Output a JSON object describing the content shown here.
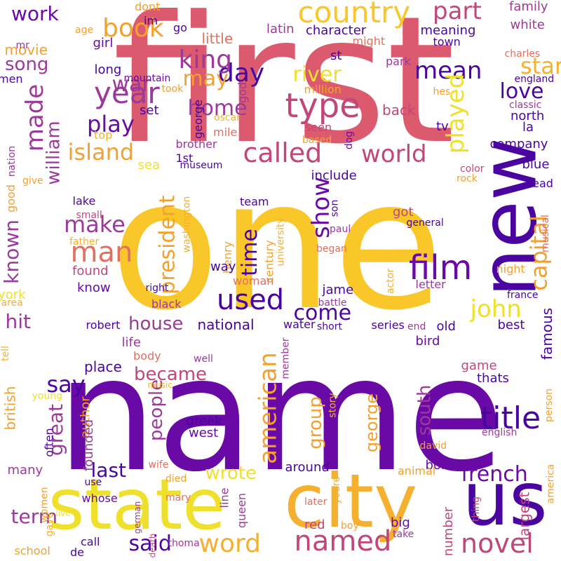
{
  "colors": {
    "background": "#ffffff",
    "palette": [
      "#dc5a6e",
      "#f9c72a",
      "#6a0aa6",
      "#f4a02e",
      "#4a04a0",
      "#c1477a",
      "#e07060",
      "#f0e02e",
      "#f4b04a",
      "#9b3a9b"
    ]
  },
  "words": [
    {
      "text": "first",
      "color": "#dc5a6e"
    },
    {
      "text": "one",
      "color": "#f9c72a"
    },
    {
      "text": "name",
      "color": "#6a0aa6"
    },
    {
      "text": "state",
      "color": "#f0e02e"
    },
    {
      "text": "city",
      "color": "#f4b02e"
    },
    {
      "text": "us",
      "color": "#4a04a0"
    },
    {
      "text": "new",
      "color": "#4a04a0"
    },
    {
      "text": "country",
      "color": "#f9c72a"
    },
    {
      "text": "year",
      "color": "#9b3a9b"
    },
    {
      "text": "called",
      "color": "#c1477a"
    },
    {
      "text": "type",
      "color": "#c1477a"
    },
    {
      "text": "man",
      "color": "#e07060"
    },
    {
      "text": "film",
      "color": "#6a0aa6"
    },
    {
      "text": "named",
      "color": "#c1477a"
    },
    {
      "text": "title",
      "color": "#4a04a0"
    },
    {
      "text": "word",
      "color": "#f4b02e"
    },
    {
      "text": "used",
      "color": "#4a04a0"
    },
    {
      "text": "novel",
      "color": "#c1477a"
    },
    {
      "text": "day",
      "color": "#4a04a0"
    },
    {
      "text": "part",
      "color": "#c1477a"
    },
    {
      "text": "book",
      "color": "#f4a02e"
    },
    {
      "text": "king",
      "color": "#9b3a9b"
    },
    {
      "text": "war",
      "color": "#9b3a9b"
    },
    {
      "text": "may",
      "color": "#f4a02e"
    },
    {
      "text": "river",
      "color": "#f0e02e"
    },
    {
      "text": "mean",
      "color": "#4a04a0"
    },
    {
      "text": "star",
      "color": "#f4b02e"
    },
    {
      "text": "love",
      "color": "#4a04a0"
    },
    {
      "text": "home",
      "color": "#9b3a9b"
    },
    {
      "text": "made",
      "color": "#9b3a9b"
    },
    {
      "text": "play",
      "color": "#6a0aa6"
    },
    {
      "text": "played",
      "color": "#f0e02e"
    },
    {
      "text": "world",
      "color": "#c1477a"
    },
    {
      "text": "island",
      "color": "#f4a02e"
    },
    {
      "text": "william",
      "color": "#9b3a9b"
    },
    {
      "text": "song",
      "color": "#9b3a9b"
    },
    {
      "text": "work",
      "color": "#6a0aa6"
    },
    {
      "text": "show",
      "color": "#6a0aa6"
    },
    {
      "text": "make",
      "color": "#9b3a9b"
    },
    {
      "text": "president",
      "color": "#f4a02e"
    },
    {
      "text": "time",
      "color": "#4a04a0"
    },
    {
      "text": "capital",
      "color": "#f4a02e"
    },
    {
      "text": "known",
      "color": "#9b3a9b"
    },
    {
      "text": "john",
      "color": "#f0e02e"
    },
    {
      "text": "come",
      "color": "#4a04a0"
    },
    {
      "text": "house",
      "color": "#9b3a9b"
    },
    {
      "text": "say",
      "color": "#4a04a0"
    },
    {
      "text": "became",
      "color": "#c1477a"
    },
    {
      "text": "people",
      "color": "#9b3a9b"
    },
    {
      "text": "american",
      "color": "#f4a02e"
    },
    {
      "text": "great",
      "color": "#9b3a9b"
    },
    {
      "text": "last",
      "color": "#4a04a0"
    },
    {
      "text": "wrote",
      "color": "#f0e02e"
    },
    {
      "text": "said",
      "color": "#4a04a0"
    },
    {
      "text": "term",
      "color": "#9b3a9b"
    },
    {
      "text": "french",
      "color": "#6a0aa6"
    },
    {
      "text": "group",
      "color": "#f4a02e"
    },
    {
      "text": "south",
      "color": "#9b3a9b"
    },
    {
      "text": "george",
      "color": "#f4a02e"
    },
    {
      "text": "hit",
      "color": "#9b3a9b"
    },
    {
      "text": "movie",
      "color": "#f4a02e"
    },
    {
      "text": "family",
      "color": "#9b3a9b"
    },
    {
      "text": "white",
      "color": "#9b3a9b"
    },
    {
      "text": "meaning",
      "color": "#4a04a0"
    },
    {
      "text": "character",
      "color": "#4a04a0"
    },
    {
      "text": "little",
      "color": "#e07060"
    },
    {
      "text": "girl",
      "color": "#6a0aa6"
    },
    {
      "text": "long",
      "color": "#4a04a0"
    },
    {
      "text": "latin",
      "color": "#9b3a9b"
    },
    {
      "text": "dont",
      "color": "#f4a02e"
    },
    {
      "text": "im",
      "color": "#4a04a0"
    },
    {
      "text": "go",
      "color": "#4a04a0"
    },
    {
      "text": "age",
      "color": "#f4a02e"
    },
    {
      "text": "mr",
      "color": "#9b3a9b"
    },
    {
      "text": "might",
      "color": "#e07060"
    },
    {
      "text": "town",
      "color": "#4a04a0"
    },
    {
      "text": "charles",
      "color": "#e07060"
    },
    {
      "text": "st",
      "color": "#4a04a0"
    },
    {
      "text": "park",
      "color": "#9b3a9b"
    },
    {
      "text": "million",
      "color": "#f4a02e"
    },
    {
      "text": "england",
      "color": "#4a04a0"
    },
    {
      "text": "hes",
      "color": "#f4a02e"
    },
    {
      "text": "classic",
      "color": "#9b3a9b"
    },
    {
      "text": "north",
      "color": "#4a04a0"
    },
    {
      "text": "la",
      "color": "#4a04a0"
    },
    {
      "text": "back",
      "color": "#c1477a"
    },
    {
      "text": "tv",
      "color": "#4a04a0"
    },
    {
      "text": "seen",
      "color": "#c1477a"
    },
    {
      "text": "god",
      "color": "#9b3a9b"
    },
    {
      "text": "mountain",
      "color": "#6a0aa6"
    },
    {
      "text": "took",
      "color": "#f4a02e"
    },
    {
      "text": "men",
      "color": "#4a04a0"
    },
    {
      "text": "set",
      "color": "#4a04a0"
    },
    {
      "text": "top",
      "color": "#f4b02e"
    },
    {
      "text": "oscar",
      "color": "#f4b02e"
    },
    {
      "text": "mile",
      "color": "#e07060"
    },
    {
      "text": "brother",
      "color": "#9b3a9b"
    },
    {
      "text": "george_sm",
      "color": "#4a04a0"
    },
    {
      "text": "based",
      "color": "#f4a02e"
    },
    {
      "text": "dog",
      "color": "#6a0aa6"
    },
    {
      "text": "company",
      "color": "#4a04a0"
    },
    {
      "text": "nation",
      "color": "#9b3a9b"
    },
    {
      "text": "1st",
      "color": "#4a04a0"
    },
    {
      "text": "museum",
      "color": "#4a04a0"
    },
    {
      "text": "sea",
      "color": "#f0e02e"
    },
    {
      "text": "include",
      "color": "#4a04a0"
    },
    {
      "text": "color",
      "color": "#c1477a"
    },
    {
      "text": "blue",
      "color": "#4a04a0"
    },
    {
      "text": "rock",
      "color": "#f4a02e"
    },
    {
      "text": "head",
      "color": "#4a04a0"
    },
    {
      "text": "good",
      "color": "#f4a02e"
    },
    {
      "text": "give",
      "color": "#f4a02e"
    },
    {
      "text": "lake",
      "color": "#4a04a0"
    },
    {
      "text": "team",
      "color": "#4a04a0"
    },
    {
      "text": "son",
      "color": "#4a04a0"
    },
    {
      "text": "got",
      "color": "#c1477a"
    },
    {
      "text": "general",
      "color": "#4a04a0"
    },
    {
      "text": "small",
      "color": "#c1477a"
    },
    {
      "text": "washington",
      "color": "#f4b02e"
    },
    {
      "text": "paul",
      "color": "#9b3a9b"
    },
    {
      "text": "father",
      "color": "#f4b02e"
    },
    {
      "text": "musical",
      "color": "#e07060"
    },
    {
      "text": "henry",
      "color": "#f4a02e"
    },
    {
      "text": "century",
      "color": "#f4a02e"
    },
    {
      "text": "university",
      "color": "#f4b02e"
    },
    {
      "text": "began",
      "color": "#e07060"
    },
    {
      "text": "found",
      "color": "#c1477a"
    },
    {
      "text": "night",
      "color": "#f4a02e"
    },
    {
      "text": "woman",
      "color": "#e07060"
    },
    {
      "text": "actor",
      "color": "#f4b02e"
    },
    {
      "text": "way",
      "color": "#4a04a0"
    },
    {
      "text": "know",
      "color": "#6a0aa6"
    },
    {
      "text": "letter",
      "color": "#9b3a9b"
    },
    {
      "text": "france",
      "color": "#4a04a0"
    },
    {
      "text": "right",
      "color": "#4a04a0"
    },
    {
      "text": "york",
      "color": "#f0e02e"
    },
    {
      "text": "area",
      "color": "#f4b02e"
    },
    {
      "text": "jame",
      "color": "#4a04a0"
    },
    {
      "text": "battle",
      "color": "#9b3a9b"
    },
    {
      "text": "black",
      "color": "#9b3a9b"
    },
    {
      "text": "famous",
      "color": "#4a04a0"
    },
    {
      "text": "water",
      "color": "#4a04a0"
    },
    {
      "text": "national",
      "color": "#4a04a0"
    },
    {
      "text": "robert",
      "color": "#4a04a0"
    },
    {
      "text": "end",
      "color": "#9b3a9b"
    },
    {
      "text": "old",
      "color": "#4a04a0"
    },
    {
      "text": "series",
      "color": "#4a04a0"
    },
    {
      "text": "best",
      "color": "#4a04a0"
    },
    {
      "text": "short",
      "color": "#4a04a0"
    },
    {
      "text": "bird",
      "color": "#6a0aa6"
    },
    {
      "text": "life",
      "color": "#9b3a9b"
    },
    {
      "text": "tell",
      "color": "#f4b02e"
    },
    {
      "text": "body",
      "color": "#e07060"
    },
    {
      "text": "well",
      "color": "#9b3a9b"
    },
    {
      "text": "member",
      "color": "#9b3a9b"
    },
    {
      "text": "place",
      "color": "#4a04a0"
    },
    {
      "text": "game",
      "color": "#c1477a"
    },
    {
      "text": "thats",
      "color": "#4a04a0"
    },
    {
      "text": "british",
      "color": "#f4a02e"
    },
    {
      "text": "music",
      "color": "#f4b02e"
    },
    {
      "text": "young",
      "color": "#f0e02e"
    },
    {
      "text": "author",
      "color": "#f4a02e"
    },
    {
      "text": "greek",
      "color": "#4a04a0"
    },
    {
      "text": "west",
      "color": "#6a0aa6"
    },
    {
      "text": "story",
      "color": "#f4b02e"
    },
    {
      "text": "person",
      "color": "#f4a02e"
    },
    {
      "text": "founded",
      "color": "#9b3a9b"
    },
    {
      "text": "often",
      "color": "#4a04a0"
    },
    {
      "text": "david",
      "color": "#f4a02e"
    },
    {
      "text": "english",
      "color": "#9b3a9b"
    },
    {
      "text": "many",
      "color": "#9b3a9b"
    },
    {
      "text": "wife",
      "color": "#e07060"
    },
    {
      "text": "born",
      "color": "#6a0aa6"
    },
    {
      "text": "around",
      "color": "#4a04a0"
    },
    {
      "text": "animal",
      "color": "#f4a02e"
    },
    {
      "text": "america",
      "color": "#f4a02e"
    },
    {
      "text": "died",
      "color": "#f4a02e"
    },
    {
      "text": "line",
      "color": "#9b3a9b"
    },
    {
      "text": "youre",
      "color": "#f4b02e"
    },
    {
      "text": "use",
      "color": "#4a04a0"
    },
    {
      "text": "women",
      "color": "#f4a02e"
    },
    {
      "text": "mary",
      "color": "#e07060"
    },
    {
      "text": "queen",
      "color": "#9b3a9b"
    },
    {
      "text": "later",
      "color": "#e07060"
    },
    {
      "text": "red",
      "color": "#c1477a"
    },
    {
      "text": "big",
      "color": "#6a0aa6"
    },
    {
      "text": "thing",
      "color": "#c1477a"
    },
    {
      "text": "largest",
      "color": "#c1477a"
    },
    {
      "text": "gave",
      "color": "#f4b02e"
    },
    {
      "text": "live",
      "color": "#f0e02e"
    },
    {
      "text": "german",
      "color": "#9b3a9b"
    },
    {
      "text": "whose",
      "color": "#6a0aa6"
    },
    {
      "text": "call",
      "color": "#4a04a0"
    },
    {
      "text": "boy",
      "color": "#f4a02e"
    },
    {
      "text": "take",
      "color": "#9b3a9b"
    },
    {
      "text": "number",
      "color": "#c1477a"
    },
    {
      "text": "school",
      "color": "#f4a02e"
    },
    {
      "text": "de",
      "color": "#4a04a0"
    },
    {
      "text": "thoma",
      "color": "#9b3a9b"
    },
    {
      "text": "death",
      "color": "#c1477a"
    }
  ]
}
